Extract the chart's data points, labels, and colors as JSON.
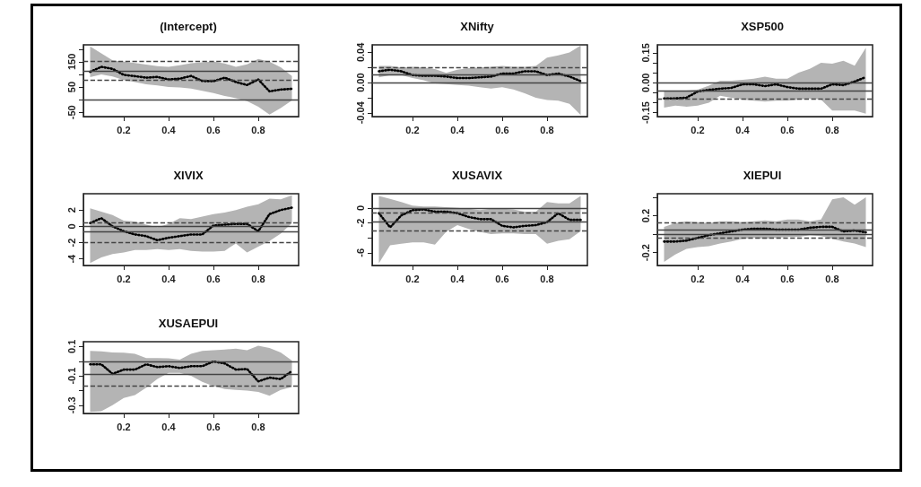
{
  "chart_data": [
    {
      "type": "line",
      "title": "(Intercept)",
      "x": [
        0.05,
        0.1,
        0.15,
        0.2,
        0.25,
        0.3,
        0.35,
        0.4,
        0.45,
        0.5,
        0.55,
        0.6,
        0.65,
        0.7,
        0.75,
        0.8,
        0.85,
        0.9,
        0.95
      ],
      "xlim": [
        0.02,
        0.98
      ],
      "xticks": [
        0.2,
        0.4,
        0.6,
        0.8
      ],
      "ylim": [
        -67,
        217
      ],
      "yticks": [
        -50,
        {
          "value": 0,
          "label": null
        },
        50,
        {
          "value": 100,
          "label": null
        },
        150,
        {
          "value": 200,
          "label": null
        }
      ],
      "line_style": "dotted",
      "marker": "none",
      "grid": false,
      "series": [
        {
          "color": "#000000",
          "values": [
            110,
            130,
            122,
            98,
            93,
            87,
            90,
            80,
            83,
            94,
            74,
            73,
            87,
            70,
            58,
            80,
            33,
            40,
            43
          ],
          "lower": [
            89,
            100,
            92,
            78,
            70,
            61,
            56,
            50,
            48,
            44,
            35,
            26,
            15,
            6,
            -6,
            -28,
            -59,
            -33,
            -3
          ],
          "upper": [
            211,
            183,
            156,
            150,
            145,
            139,
            133,
            130,
            136,
            144,
            148,
            150,
            143,
            130,
            140,
            161,
            150,
            128,
            94
          ]
        }
      ],
      "ref_lines": [
        {
          "axis": "y",
          "value": 0,
          "line_style": "solid"
        },
        {
          "axis": "y",
          "value": 113,
          "line_style": "solid"
        },
        {
          "axis": "y",
          "value": 152,
          "line_style": "dashed"
        },
        {
          "axis": "y",
          "value": 77,
          "line_style": "dashed"
        }
      ]
    },
    {
      "type": "line",
      "title": "XNifty",
      "x": [
        0.05,
        0.1,
        0.15,
        0.2,
        0.25,
        0.3,
        0.35,
        0.4,
        0.45,
        0.5,
        0.55,
        0.6,
        0.65,
        0.7,
        0.75,
        0.8,
        0.85,
        0.9,
        0.95
      ],
      "xlim": [
        0.02,
        0.98
      ],
      "xticks": [
        0.2,
        0.4,
        0.6,
        0.8
      ],
      "ylim": [
        -0.045,
        0.05
      ],
      "yticks": [
        {
          "value": -0.04,
          "label": "-0.04"
        },
        {
          "value": -0.02,
          "label": null
        },
        {
          "value": 0,
          "label": "0.00"
        },
        {
          "value": 0.02,
          "label": null
        },
        {
          "value": 0.04,
          "label": "0.04"
        }
      ],
      "line_style": "dotted",
      "marker": "none",
      "grid": false,
      "series": [
        {
          "color": "#000000",
          "values": [
            0.015,
            0.017,
            0.015,
            0.01,
            0.009,
            0.009,
            0.008,
            0.006,
            0.006,
            0.007,
            0.008,
            0.012,
            0.012,
            0.015,
            0.015,
            0.01,
            0.012,
            0.008,
            0.002
          ],
          "lower": [
            0.007,
            0.01,
            0.01,
            0.006,
            0.003,
            -0.001,
            -0.002,
            -0.003,
            -0.004,
            -0.006,
            -0.008,
            -0.006,
            -0.009,
            -0.014,
            -0.02,
            -0.023,
            -0.024,
            -0.028,
            -0.043
          ],
          "upper": [
            0.022,
            0.022,
            0.02,
            0.021,
            0.02,
            0.018,
            0.013,
            0.017,
            0.019,
            0.02,
            0.021,
            0.022,
            0.021,
            0.021,
            0.022,
            0.033,
            0.036,
            0.04,
            0.049
          ]
        }
      ],
      "ref_lines": [
        {
          "axis": "y",
          "value": 0,
          "line_style": "solid"
        },
        {
          "axis": "y",
          "value": 0.011,
          "line_style": "solid"
        },
        {
          "axis": "y",
          "value": 0.02,
          "line_style": "dashed"
        }
      ]
    },
    {
      "type": "line",
      "title": "XSP500",
      "x": [
        0.05,
        0.1,
        0.15,
        0.2,
        0.25,
        0.3,
        0.35,
        0.4,
        0.45,
        0.5,
        0.55,
        0.6,
        0.65,
        0.7,
        0.75,
        0.8,
        0.85,
        0.9,
        0.95
      ],
      "xlim": [
        0.02,
        0.98
      ],
      "xticks": [
        0.2,
        0.4,
        0.6,
        0.8
      ],
      "ylim": [
        -0.17,
        0.19
      ],
      "yticks": [
        {
          "value": -0.15,
          "label": "-0.15"
        },
        {
          "value": -0.1,
          "label": null
        },
        {
          "value": -0.05,
          "label": null
        },
        {
          "value": 0,
          "label": "0.00"
        },
        {
          "value": 0.05,
          "label": null
        },
        {
          "value": 0.1,
          "label": null
        },
        {
          "value": 0.15,
          "label": "0.15"
        }
      ],
      "line_style": "dotted",
      "marker": "none",
      "grid": false,
      "series": [
        {
          "color": "#000000",
          "values": [
            -0.079,
            -0.079,
            -0.075,
            -0.044,
            -0.036,
            -0.03,
            -0.026,
            -0.008,
            -0.008,
            -0.017,
            -0.008,
            -0.022,
            -0.03,
            -0.03,
            -0.03,
            -0.008,
            -0.012,
            0.006,
            0.028
          ],
          "lower": [
            -0.125,
            -0.115,
            -0.12,
            -0.115,
            -0.1,
            -0.065,
            -0.075,
            -0.085,
            -0.09,
            -0.095,
            -0.09,
            -0.09,
            -0.085,
            -0.08,
            -0.085,
            -0.14,
            -0.14,
            -0.14,
            -0.155
          ],
          "upper": [
            -0.04,
            -0.04,
            -0.04,
            -0.035,
            -0.015,
            0.01,
            0.01,
            0.015,
            0.02,
            0.03,
            0.02,
            0.02,
            0.05,
            0.07,
            0.1,
            0.095,
            0.11,
            0.085,
            0.175
          ]
        }
      ],
      "ref_lines": [
        {
          "axis": "y",
          "value": 0,
          "line_style": "solid"
        },
        {
          "axis": "y",
          "value": -0.041,
          "line_style": "solid"
        },
        {
          "axis": "y",
          "value": -0.082,
          "line_style": "dashed"
        }
      ]
    },
    {
      "type": "line",
      "title": "XIVIX",
      "x": [
        0.05,
        0.1,
        0.15,
        0.2,
        0.25,
        0.3,
        0.35,
        0.4,
        0.45,
        0.5,
        0.55,
        0.6,
        0.65,
        0.7,
        0.75,
        0.8,
        0.85,
        0.9,
        0.95
      ],
      "xlim": [
        0.02,
        0.98
      ],
      "xticks": [
        0.2,
        0.4,
        0.6,
        0.8
      ],
      "ylim": [
        -4.8,
        4.0
      ],
      "yticks": [
        -4,
        -2,
        0,
        2
      ],
      "line_style": "dotted",
      "marker": "none",
      "grid": false,
      "series": [
        {
          "color": "#000000",
          "values": [
            0.4,
            1.0,
            0.0,
            -0.6,
            -1.0,
            -1.2,
            -1.7,
            -1.4,
            -1.2,
            -1.0,
            -1.0,
            0.1,
            0.2,
            0.3,
            0.3,
            -0.6,
            1.5,
            2.0,
            2.3
          ],
          "lower": [
            -4.5,
            -3.8,
            -3.4,
            -3.2,
            -2.9,
            -2.9,
            -2.8,
            -2.9,
            -2.8,
            -3.0,
            -3.1,
            -3.1,
            -3.0,
            -2.1,
            -3.2,
            -2.5,
            -1.8,
            -0.9,
            0.4
          ],
          "upper": [
            2.2,
            1.8,
            1.4,
            0.7,
            0.6,
            0.2,
            -0.1,
            0.3,
            1.0,
            0.9,
            1.2,
            1.5,
            1.7,
            2.0,
            2.4,
            2.7,
            3.4,
            3.3,
            3.8
          ]
        }
      ],
      "ref_lines": [
        {
          "axis": "y",
          "value": 0,
          "line_style": "solid"
        },
        {
          "axis": "y",
          "value": -0.7,
          "line_style": "solid"
        },
        {
          "axis": "y",
          "value": 0.5,
          "line_style": "dashed"
        },
        {
          "axis": "y",
          "value": -2.0,
          "line_style": "dashed"
        }
      ]
    },
    {
      "type": "line",
      "title": "XUSAVIX",
      "x": [
        0.05,
        0.1,
        0.15,
        0.2,
        0.25,
        0.3,
        0.35,
        0.4,
        0.45,
        0.5,
        0.55,
        0.6,
        0.65,
        0.7,
        0.75,
        0.8,
        0.85,
        0.9,
        0.95
      ],
      "xlim": [
        0.02,
        0.98
      ],
      "xticks": [
        0.2,
        0.4,
        0.6,
        0.8
      ],
      "ylim": [
        -7.7,
        1.9
      ],
      "yticks": [
        -6,
        {
          "value": -4,
          "label": null
        },
        -2,
        0
      ],
      "line_style": "dotted",
      "marker": "none",
      "grid": false,
      "series": [
        {
          "color": "#000000",
          "values": [
            -0.7,
            -2.6,
            -1.0,
            -0.3,
            -0.2,
            -0.5,
            -0.5,
            -0.7,
            -1.2,
            -1.5,
            -1.5,
            -2.4,
            -2.6,
            -2.4,
            -2.3,
            -1.9,
            -0.7,
            -1.6,
            -1.6
          ],
          "lower": [
            -7.4,
            -5.0,
            -4.8,
            -4.6,
            -4.6,
            -4.9,
            -3.2,
            -2.3,
            -2.8,
            -3.2,
            -3.5,
            -3.4,
            -3.4,
            -3.5,
            -3.5,
            -4.8,
            -4.4,
            -4.2,
            -3.1
          ],
          "upper": [
            1.6,
            1.2,
            0.8,
            0.3,
            0.2,
            0.2,
            0.1,
            0.0,
            -0.1,
            -0.3,
            -0.1,
            -0.1,
            -0.2,
            -0.5,
            -0.5,
            0.8,
            0.6,
            0.6,
            1.6
          ]
        }
      ],
      "ref_lines": [
        {
          "axis": "y",
          "value": 0,
          "line_style": "solid"
        },
        {
          "axis": "y",
          "value": -1.9,
          "line_style": "solid"
        },
        {
          "axis": "y",
          "value": -0.6,
          "line_style": "dashed"
        },
        {
          "axis": "y",
          "value": -3.0,
          "line_style": "dashed"
        }
      ]
    },
    {
      "type": "line",
      "title": "XIEPUI",
      "x": [
        0.05,
        0.1,
        0.15,
        0.2,
        0.25,
        0.3,
        0.35,
        0.4,
        0.45,
        0.5,
        0.55,
        0.6,
        0.65,
        0.7,
        0.75,
        0.8,
        0.85,
        0.9,
        0.95
      ],
      "xlim": [
        0.02,
        0.98
      ],
      "xticks": [
        0.2,
        0.4,
        0.6,
        0.8
      ],
      "ylim": [
        -0.34,
        0.44
      ],
      "yticks": [
        {
          "value": -0.2,
          "label": "-0.2"
        },
        {
          "value": 0,
          "label": null
        },
        {
          "value": 0.2,
          "label": "0.2"
        },
        {
          "value": 0.4,
          "label": null
        }
      ],
      "line_style": "dotted",
      "marker": "none",
      "grid": false,
      "series": [
        {
          "color": "#000000",
          "values": [
            -0.08,
            -0.08,
            -0.07,
            -0.04,
            -0.01,
            0.01,
            0.03,
            0.05,
            0.06,
            0.06,
            0.05,
            0.05,
            0.05,
            0.07,
            0.08,
            0.08,
            0.03,
            0.04,
            0.02
          ],
          "lower": [
            -0.3,
            -0.22,
            -0.16,
            -0.14,
            -0.13,
            -0.1,
            -0.08,
            -0.05,
            -0.04,
            -0.05,
            -0.04,
            -0.03,
            -0.03,
            -0.01,
            -0.02,
            -0.05,
            -0.08,
            -0.1,
            -0.14
          ],
          "upper": [
            0.08,
            0.12,
            0.14,
            0.13,
            0.12,
            0.14,
            0.14,
            0.13,
            0.14,
            0.15,
            0.14,
            0.16,
            0.16,
            0.14,
            0.16,
            0.38,
            0.4,
            0.32,
            0.4
          ]
        }
      ],
      "ref_lines": [
        {
          "axis": "y",
          "value": 0,
          "line_style": "solid"
        },
        {
          "axis": "y",
          "value": 0.05,
          "line_style": "solid"
        },
        {
          "axis": "y",
          "value": 0.13,
          "line_style": "dashed"
        },
        {
          "axis": "y",
          "value": -0.04,
          "line_style": "dashed"
        }
      ]
    },
    {
      "type": "line",
      "title": "XUSAEPUI",
      "x": [
        0.05,
        0.1,
        0.15,
        0.2,
        0.25,
        0.3,
        0.35,
        0.4,
        0.45,
        0.5,
        0.55,
        0.6,
        0.65,
        0.7,
        0.75,
        0.8,
        0.85,
        0.9,
        0.95
      ],
      "xlim": [
        0.02,
        0.98
      ],
      "xticks": [
        0.2,
        0.4,
        0.6,
        0.8
      ],
      "ylim": [
        -0.356,
        0.133
      ],
      "yticks": [
        {
          "value": -0.3,
          "label": "-0.3"
        },
        {
          "value": -0.2,
          "label": null
        },
        {
          "value": -0.1,
          "label": "-0.1"
        },
        {
          "value": 0,
          "label": null
        },
        {
          "value": 0.1,
          "label": "0.1"
        }
      ],
      "line_style": "dotted",
      "marker": "none",
      "grid": false,
      "series": [
        {
          "color": "#000000",
          "values": [
            -0.021,
            -0.021,
            -0.086,
            -0.057,
            -0.057,
            -0.021,
            -0.04,
            -0.034,
            -0.046,
            -0.034,
            -0.034,
            -0.002,
            -0.015,
            -0.057,
            -0.053,
            -0.137,
            -0.112,
            -0.122,
            -0.067
          ],
          "lower": [
            -0.345,
            -0.34,
            -0.3,
            -0.25,
            -0.23,
            -0.18,
            -0.12,
            -0.08,
            -0.08,
            -0.1,
            -0.14,
            -0.17,
            -0.19,
            -0.195,
            -0.2,
            -0.21,
            -0.235,
            -0.195,
            -0.175
          ],
          "upper": [
            0.07,
            0.067,
            0.06,
            0.058,
            0.05,
            0.022,
            0.022,
            0.02,
            0.01,
            0.05,
            0.07,
            0.075,
            0.08,
            0.085,
            0.075,
            0.105,
            0.09,
            0.06,
            0.005
          ]
        }
      ],
      "ref_lines": [
        {
          "axis": "y",
          "value": 0,
          "line_style": "solid"
        },
        {
          "axis": "y",
          "value": -0.086,
          "line_style": "solid"
        },
        {
          "axis": "y",
          "value": -0.17,
          "line_style": "dashed"
        }
      ]
    }
  ]
}
